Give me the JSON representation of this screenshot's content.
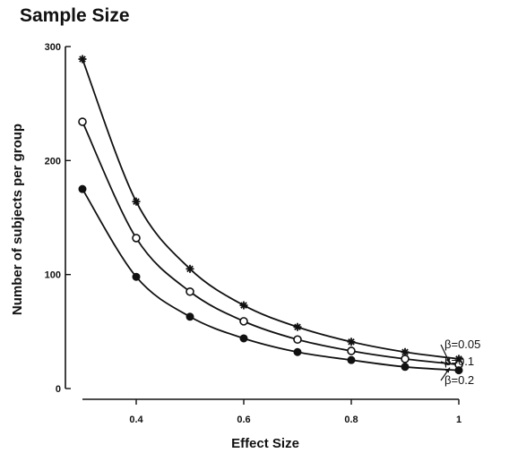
{
  "chart_data": {
    "type": "line",
    "title": "Sample Size",
    "xlabel": "Effect Size",
    "ylabel": "Number of subjects per group",
    "xlim": [
      0.3,
      1.0
    ],
    "ylim": [
      0,
      300
    ],
    "xticks": [
      0.4,
      0.6,
      0.8,
      1.0
    ],
    "xtick_labels": [
      "0.4",
      "0.6",
      "0.8",
      "1"
    ],
    "yticks": [
      0,
      100,
      200,
      300
    ],
    "ytick_labels": [
      "0",
      "100",
      "200",
      "300"
    ],
    "grid": false,
    "x": [
      0.3,
      0.4,
      0.5,
      0.6,
      0.7,
      0.8,
      0.9,
      1.0
    ],
    "series": [
      {
        "name": "β=0.05",
        "marker": "asterisk",
        "values": [
          289,
          164,
          105,
          73,
          54,
          41,
          32,
          26
        ]
      },
      {
        "name": "β=0.1",
        "marker": "open-circle",
        "values": [
          234,
          132,
          85,
          59,
          43,
          33,
          26,
          21
        ]
      },
      {
        "name": "β=0.2",
        "marker": "filled-circle",
        "values": [
          175,
          98,
          63,
          44,
          32,
          25,
          19,
          16
        ]
      }
    ]
  }
}
